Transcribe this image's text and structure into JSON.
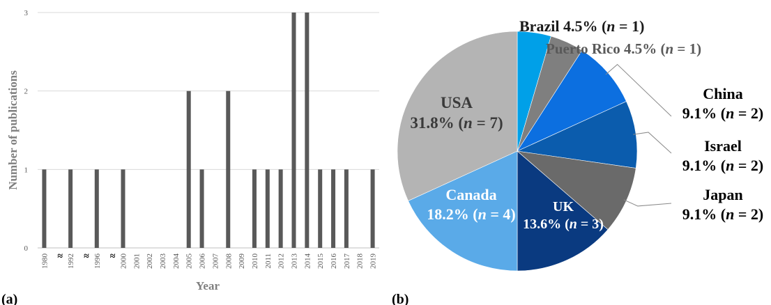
{
  "panels": {
    "a": "(a)",
    "b": "(b)"
  },
  "chart_data": [
    {
      "type": "bar",
      "title": "",
      "xlabel": "Year",
      "ylabel": "Number of publications",
      "ylim": [
        0,
        3
      ],
      "yticks": [
        "0",
        "1",
        "2",
        "3"
      ],
      "grid": true,
      "break_marker": "≈",
      "categories": [
        "1980",
        "≈",
        "1992",
        "≈",
        "1996",
        "≈",
        "2000",
        "2001",
        "2002",
        "2003",
        "2004",
        "2005",
        "2006",
        "2007",
        "2008",
        "2009",
        "2010",
        "2011",
        "2012",
        "2013",
        "2014",
        "2015",
        "2016",
        "2017",
        "2018",
        "2019"
      ],
      "values": [
        1,
        0,
        1,
        0,
        1,
        0,
        1,
        0,
        0,
        0,
        0,
        2,
        1,
        0,
        2,
        0,
        1,
        1,
        1,
        3,
        3,
        1,
        1,
        1,
        0,
        1
      ],
      "bar_color": "#595959"
    },
    {
      "type": "pie",
      "title": "",
      "slices": [
        {
          "name": "Brazil",
          "percent": "4.5%",
          "n": "1",
          "value": 1,
          "color": "#00a0e8",
          "label_color": "#1a1a1a"
        },
        {
          "name": "Puerto Rico",
          "percent": "4.5%",
          "n": "1",
          "value": 1,
          "color": "#7f7f7f",
          "label_color": "#595959"
        },
        {
          "name": "China",
          "percent": "9.1%",
          "n": "2",
          "value": 2,
          "color": "#0c6fe0",
          "label_color": "#000000"
        },
        {
          "name": "Israel",
          "percent": "9.1%",
          "n": "2",
          "value": 2,
          "color": "#0b5cad",
          "label_color": "#000000"
        },
        {
          "name": "Japan",
          "percent": "9.1%",
          "n": "2",
          "value": 2,
          "color": "#6a6a6a",
          "label_color": "#000000"
        },
        {
          "name": "UK",
          "percent": "13.6%",
          "n": "3",
          "value": 3,
          "color": "#0a3a80",
          "label_color": "#ffffff"
        },
        {
          "name": "Canada",
          "percent": "18.2%",
          "n": "4",
          "value": 4,
          "color": "#5aaae8",
          "label_color": "#ffffff"
        },
        {
          "name": "USA",
          "percent": "31.8%",
          "n": "7",
          "value": 7,
          "color": "#b4b4b4",
          "label_color": "#3a3a3a"
        }
      ]
    }
  ]
}
